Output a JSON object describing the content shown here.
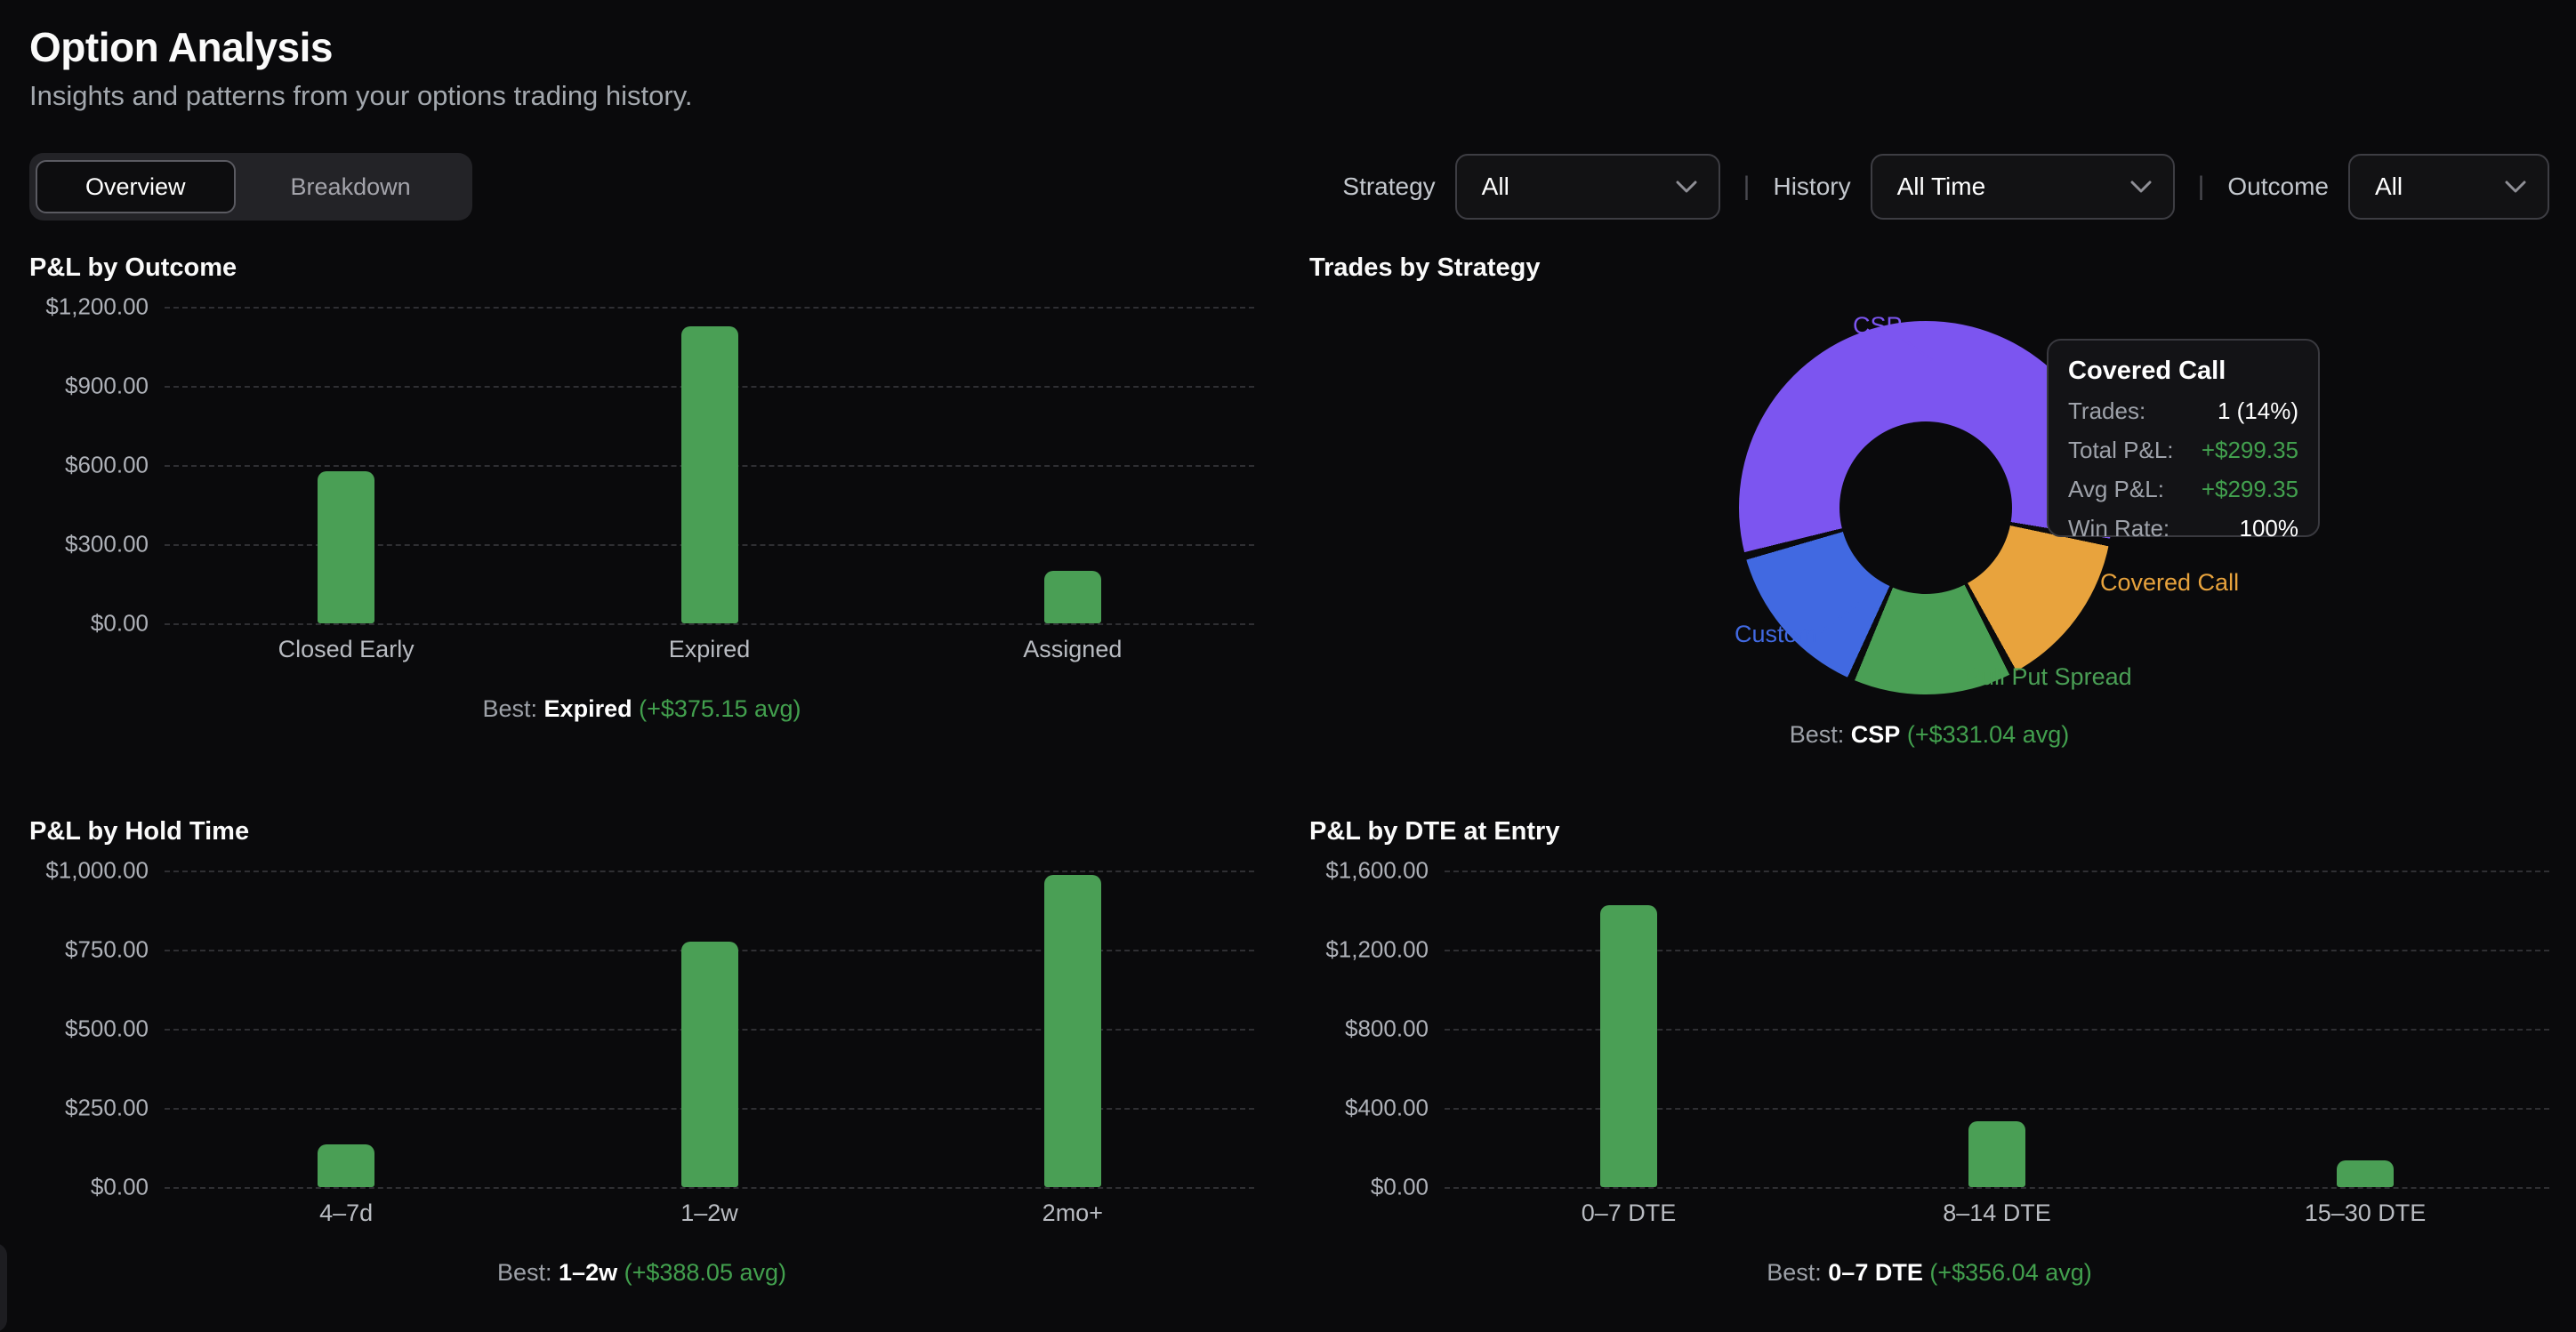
{
  "header": {
    "title": "Option Analysis",
    "subtitle": "Insights and patterns from your options trading history."
  },
  "tabs": [
    {
      "label": "Overview",
      "active": true
    },
    {
      "label": "Breakdown",
      "active": false
    }
  ],
  "filters": {
    "strategy": {
      "label": "Strategy",
      "value": "All"
    },
    "history": {
      "label": "History",
      "value": "All Time"
    },
    "outcome": {
      "label": "Outcome",
      "value": "All"
    },
    "separator": "|",
    "chevron_icon": "chevron-down"
  },
  "labels": {
    "best_prefix": "Best:"
  },
  "colors": {
    "background": "#0a0a0c",
    "bar_green": "#4A9F55",
    "accent_green_text": "#42A04E",
    "purple": "#7C55F0",
    "blue": "#4169E1",
    "orange": "#E8A33D"
  },
  "chart_data": [
    {
      "type": "bar",
      "title": "P&L by Outcome",
      "categories": [
        "Closed Early",
        "Expired",
        "Assigned"
      ],
      "values": [
        575,
        1125.45,
        200
      ],
      "ylim": [
        0,
        1200
      ],
      "yticks": [
        "$1,200.00",
        "$900.00",
        "$600.00",
        "$300.00",
        "$0.00"
      ],
      "grid": true,
      "bar_color": "#4A9F55",
      "best": {
        "name": "Expired",
        "avg_display": "(+$375.15 avg)"
      }
    },
    {
      "type": "pie",
      "title": "Trades by Strategy",
      "donut": true,
      "rotation_deg": 255,
      "slices": [
        {
          "label": "CSP",
          "trades": 4,
          "percent": 57,
          "color": "#7C55F0"
        },
        {
          "label": "Covered Call",
          "trades": 1,
          "percent": 14,
          "color": "#E8A33D"
        },
        {
          "label": "Bull Put Spread",
          "trades": 1,
          "percent": 14,
          "color": "#4A9F55"
        },
        {
          "label": "Custom",
          "trades": 1,
          "percent": 14,
          "color": "#4169E1"
        }
      ],
      "tooltip": {
        "title": "Covered Call",
        "rows": [
          {
            "label": "Trades:",
            "value": "1 (14%)",
            "color": "white"
          },
          {
            "label": "Total P&L:",
            "value": "+$299.35",
            "color": "green"
          },
          {
            "label": "Avg P&L:",
            "value": "+$299.35",
            "color": "green"
          },
          {
            "label": "Win Rate:",
            "value": "100%",
            "color": "white"
          }
        ]
      },
      "best": {
        "name": "CSP",
        "avg_display": "(+$331.04 avg)"
      }
    },
    {
      "type": "bar",
      "title": "P&L by Hold Time",
      "categories": [
        "4–7d",
        "1–2w",
        "2mo+"
      ],
      "values": [
        135,
        776.1,
        985
      ],
      "ylim": [
        0,
        1000
      ],
      "yticks": [
        "$1,000.00",
        "$750.00",
        "$500.00",
        "$250.00",
        "$0.00"
      ],
      "grid": true,
      "bar_color": "#4A9F55",
      "best": {
        "name": "1–2w",
        "avg_display": "(+$388.05 avg)"
      }
    },
    {
      "type": "bar",
      "title": "P&L by DTE at Entry",
      "categories": [
        "0–7 DTE",
        "8–14 DTE",
        "15–30 DTE"
      ],
      "values": [
        1424.16,
        333,
        133
      ],
      "ylim": [
        0,
        1600
      ],
      "yticks": [
        "$1,600.00",
        "$1,200.00",
        "$800.00",
        "$400.00",
        "$0.00"
      ],
      "grid": true,
      "bar_color": "#4A9F55",
      "best": {
        "name": "0–7 DTE",
        "avg_display": "(+$356.04 avg)"
      }
    }
  ]
}
